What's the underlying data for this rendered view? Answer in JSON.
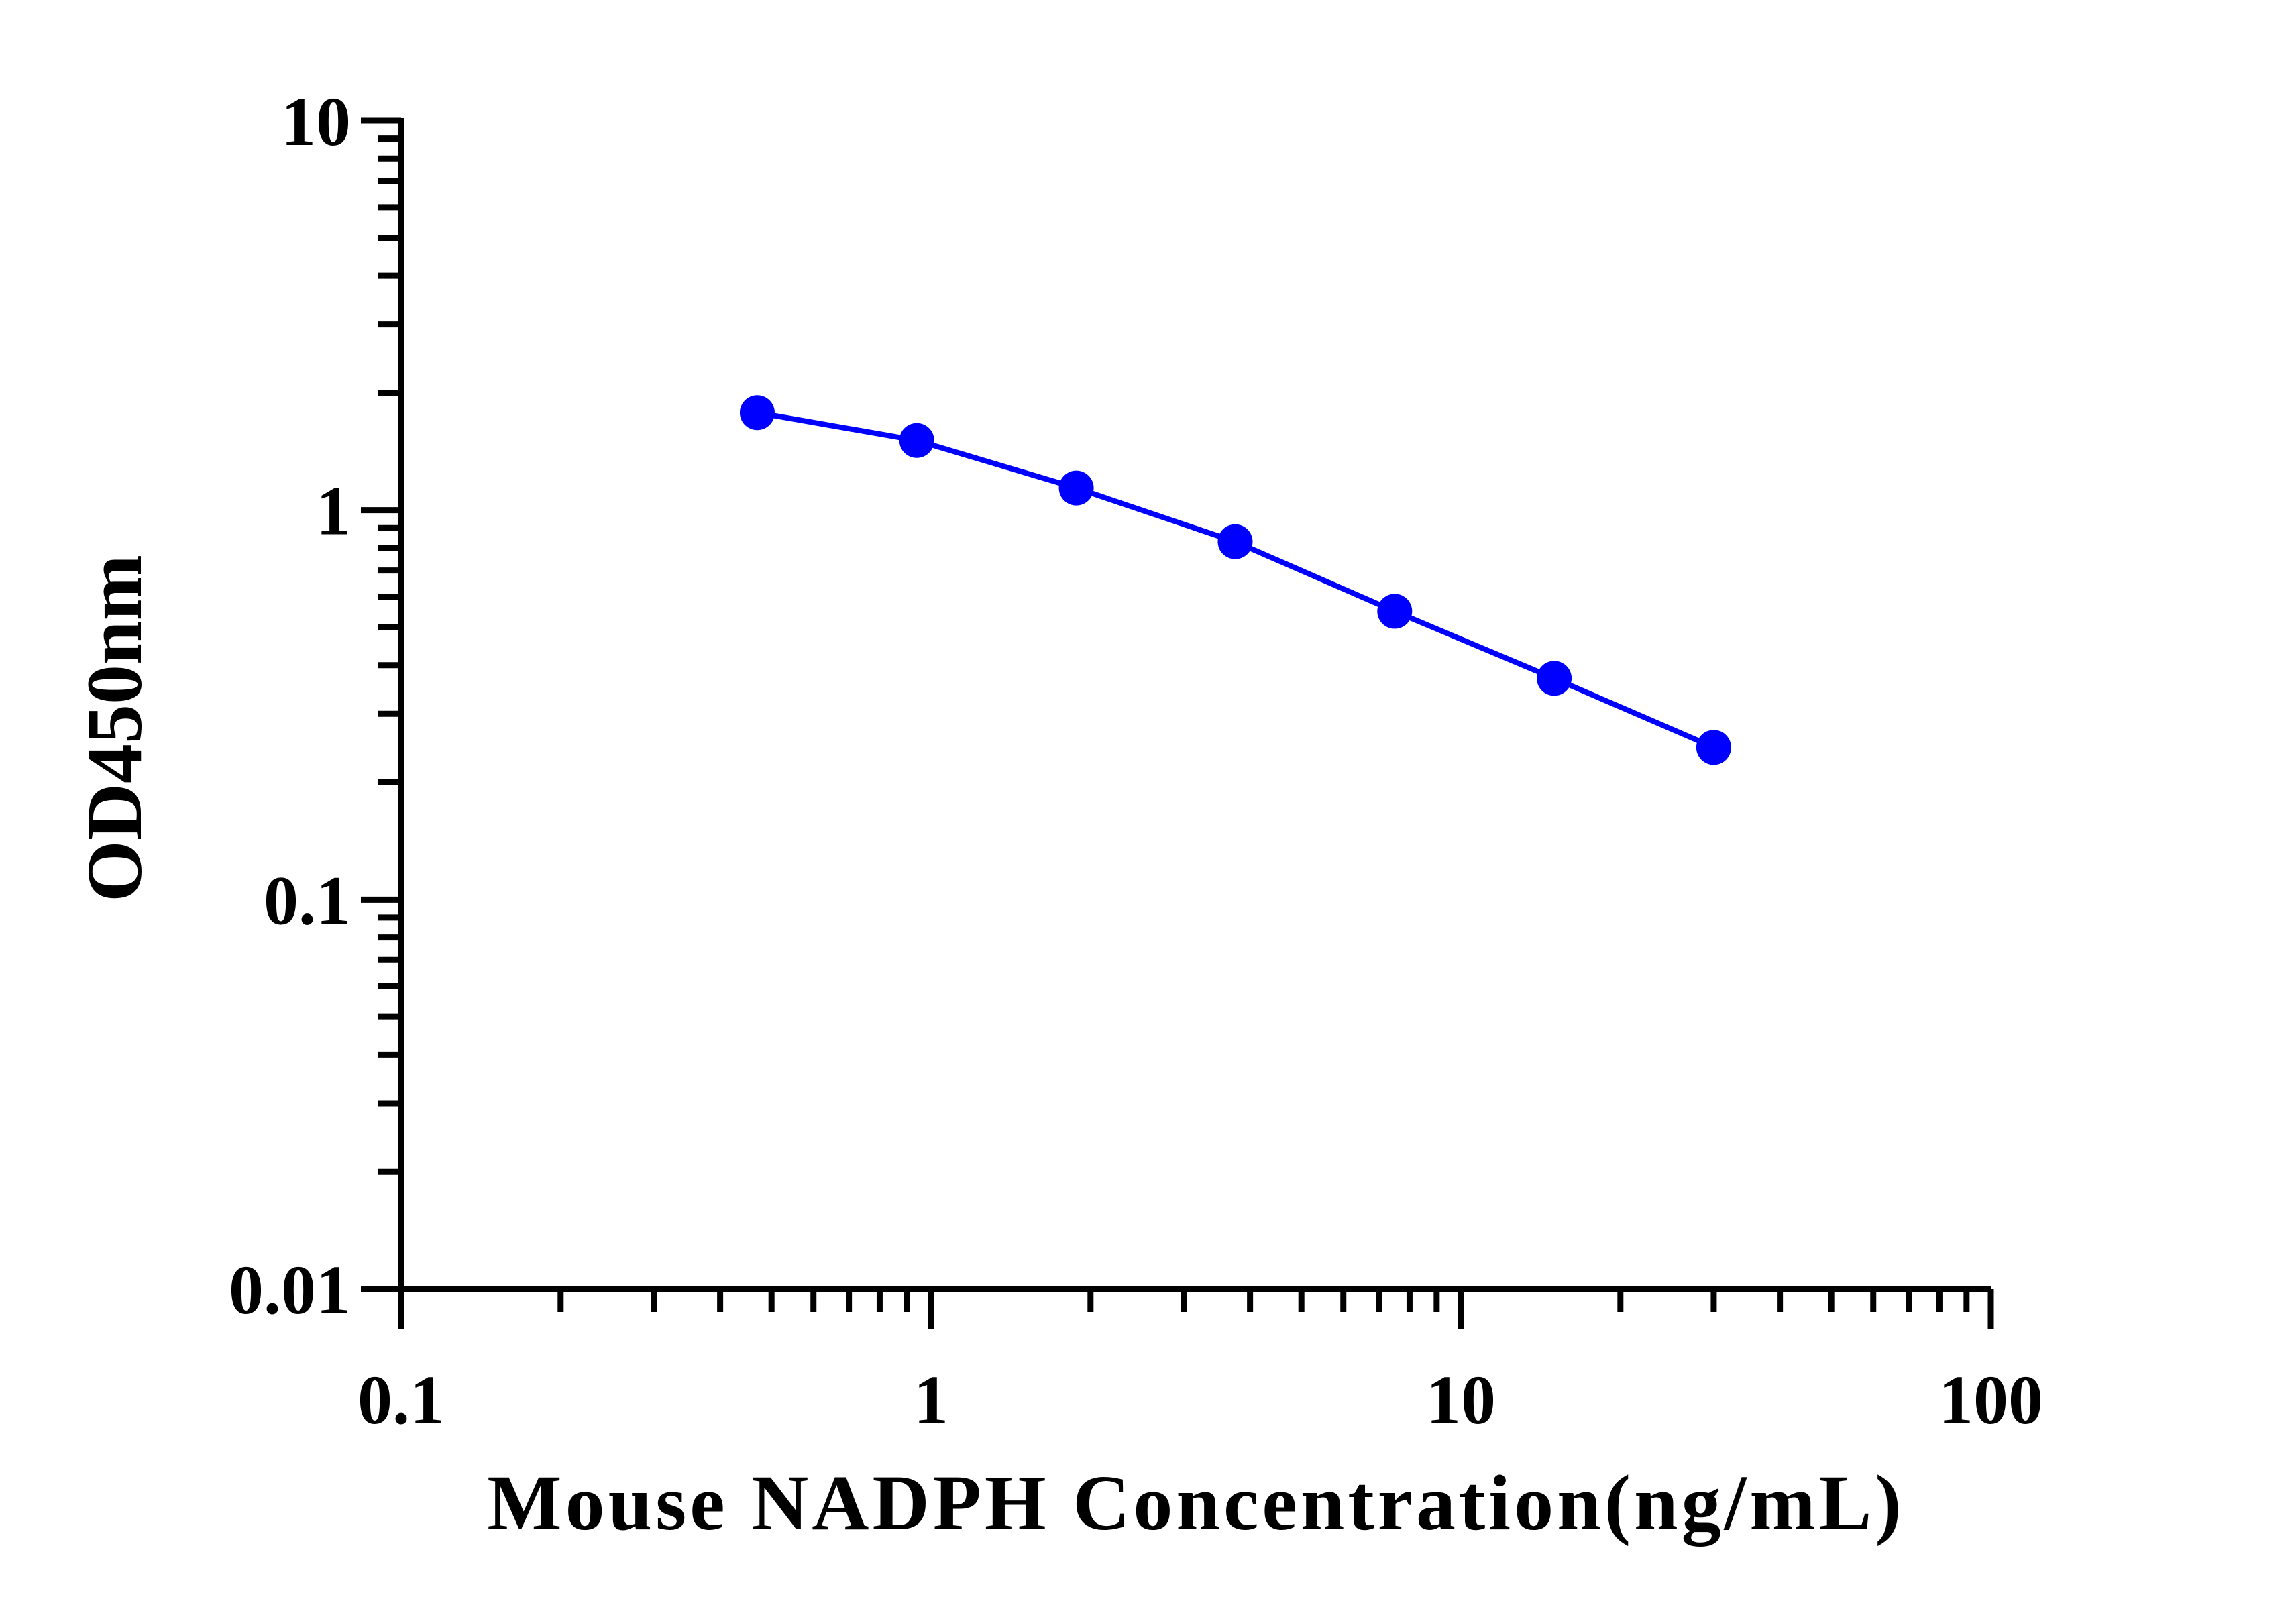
{
  "chart_data": {
    "type": "line",
    "xscale": "log",
    "yscale": "log",
    "xlim": [
      0.1,
      100
    ],
    "ylim": [
      0.01,
      10
    ],
    "xlabel": "Mouse NADPH Concentration(ng/mL)",
    "ylabel": "OD450nm",
    "xticks": [
      {
        "value": 0.1,
        "label": "0.1"
      },
      {
        "value": 1,
        "label": "1"
      },
      {
        "value": 10,
        "label": "10"
      },
      {
        "value": 100,
        "label": "100"
      }
    ],
    "yticks": [
      {
        "value": 0.01,
        "label": "0.01"
      },
      {
        "value": 0.1,
        "label": "0.1"
      },
      {
        "value": 1,
        "label": "1"
      },
      {
        "value": 10,
        "label": "10"
      }
    ],
    "grid": false,
    "legend": "none",
    "series": [
      {
        "color": "#0000ff",
        "x": [
          0.47,
          0.94,
          1.88,
          3.75,
          7.5,
          15,
          30
        ],
        "y": [
          1.78,
          1.51,
          1.14,
          0.83,
          0.55,
          0.37,
          0.246
        ]
      }
    ]
  }
}
